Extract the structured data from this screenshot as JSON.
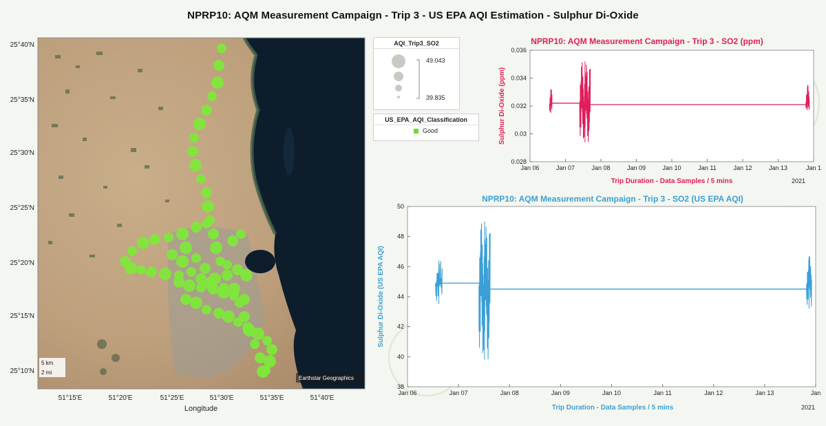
{
  "main_title": "NPRP10: AQM Measurement Campaign - Trip 3 - US EPA AQI Estimation - Sulphur Di-Oxide",
  "map": {
    "y_ticks": [
      "25°40'N",
      "25°35'N",
      "25°30'N",
      "25°25'N",
      "25°20'N",
      "25°15'N",
      "25°10'N"
    ],
    "x_ticks": [
      "51°15'E",
      "51°20'E",
      "51°25'E",
      "51°30'E",
      "51°35'E",
      "51°40'E"
    ],
    "x_label": "Longitude",
    "scale_km": "5 km",
    "scale_mi": "2 mi",
    "attribution": "Earthstar Geographics",
    "marker_color": "#7ee83a"
  },
  "legend_size": {
    "title": "AQI_Trip3_SO2",
    "max_label": "49.043",
    "min_label": "39.835"
  },
  "legend_class": {
    "title": "US_EPA_AQI_Classification",
    "item": "Good",
    "color": "#6fdc3a"
  },
  "chart_data": [
    {
      "type": "line",
      "title": "NPRP10: AQM Measurement Campaign - Trip 3 - SO2 (ppm)",
      "xlabel": "Trip Duration - Data Samples / 5 mins",
      "ylabel": "Sulphur Di-Oxide (ppm)",
      "year_label": "2021",
      "color": "#e01e5a",
      "xlim": [
        0,
        8
      ],
      "ylim": [
        0.028,
        0.036
      ],
      "x_ticks": [
        "Jan 06",
        "Jan 07",
        "Jan 08",
        "Jan 09",
        "Jan 10",
        "Jan 11",
        "Jan 12",
        "Jan 13",
        "Jan 1"
      ],
      "y_ticks": [
        "0.028",
        "0.03",
        "0.032",
        "0.034",
        "0.036"
      ],
      "segments": [
        {
          "x_start": 0.55,
          "x_end": 0.62,
          "base": 0.0321,
          "min": 0.0315,
          "max": 0.0332,
          "n": 18
        },
        {
          "x_start": 1.4,
          "x_end": 1.7,
          "base": 0.0322,
          "min": 0.0294,
          "max": 0.0352,
          "n": 60
        },
        {
          "x_start": 7.78,
          "x_end": 7.88,
          "base": 0.0322,
          "min": 0.0317,
          "max": 0.0335,
          "n": 22
        }
      ],
      "plateaus": [
        {
          "x_start": 0.62,
          "x_end": 1.4,
          "value": 0.0322
        },
        {
          "x_start": 1.7,
          "x_end": 7.78,
          "value": 0.0321
        }
      ]
    },
    {
      "type": "line",
      "title": "NPRP10: AQM Measurement Campaign - Trip 3 - SO2 (US EPA AQI)",
      "xlabel": "Trip Duration - Data Samples / 5 mins",
      "ylabel": "Sulphur Di-Oxide (US EPA AQI)",
      "year_label": "2021",
      "color": "#3a9fd6",
      "xlim": [
        0,
        8
      ],
      "ylim": [
        38,
        50
      ],
      "x_ticks": [
        "Jan 06",
        "Jan 07",
        "Jan 08",
        "Jan 09",
        "Jan 10",
        "Jan 11",
        "Jan 12",
        "Jan 13",
        "Jan"
      ],
      "y_ticks": [
        "38",
        "40",
        "42",
        "44",
        "46",
        "48",
        "50"
      ],
      "segments": [
        {
          "x_start": 0.55,
          "x_end": 0.68,
          "base": 44.9,
          "min": 43.5,
          "max": 46.4,
          "n": 18
        },
        {
          "x_start": 1.4,
          "x_end": 1.62,
          "base": 44.7,
          "min": 39.8,
          "max": 49.0,
          "n": 60
        },
        {
          "x_start": 7.82,
          "x_end": 7.92,
          "base": 44.8,
          "min": 43.2,
          "max": 46.7,
          "n": 22
        }
      ],
      "plateaus": [
        {
          "x_start": 0.68,
          "x_end": 1.4,
          "value": 44.9
        },
        {
          "x_start": 1.62,
          "x_end": 7.82,
          "value": 44.5
        }
      ]
    }
  ]
}
